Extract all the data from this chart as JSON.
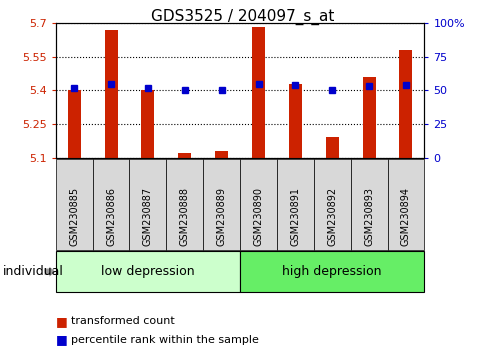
{
  "title": "GDS3525 / 204097_s_at",
  "samples": [
    "GSM230885",
    "GSM230886",
    "GSM230887",
    "GSM230888",
    "GSM230889",
    "GSM230890",
    "GSM230891",
    "GSM230892",
    "GSM230893",
    "GSM230894"
  ],
  "red_values": [
    5.4,
    5.67,
    5.4,
    5.12,
    5.13,
    5.68,
    5.43,
    5.19,
    5.46,
    5.58
  ],
  "blue_values": [
    52,
    55,
    52,
    50,
    50,
    55,
    54,
    50,
    53,
    54
  ],
  "ymin": 5.1,
  "ymax": 5.7,
  "yright_min": 0,
  "yright_max": 100,
  "yticks_left": [
    5.1,
    5.25,
    5.4,
    5.55,
    5.7
  ],
  "ytick_labels_left": [
    "5.1",
    "5.25",
    "5.4",
    "5.55",
    "5.7"
  ],
  "yticks_right": [
    0,
    25,
    50,
    75,
    100
  ],
  "ytick_labels_right": [
    "0",
    "25",
    "50",
    "75",
    "100%"
  ],
  "group1_label": "low depression",
  "group2_label": "high depression",
  "group1_color": "#ccffcc",
  "group2_color": "#66ee66",
  "bar_color": "#cc2200",
  "dot_color": "#0000cc",
  "baseline": 5.1,
  "individual_label": "individual",
  "legend_red": "transformed count",
  "legend_blue": "percentile rank within the sample",
  "bar_width": 0.35,
  "sample_box_color": "#d8d8d8",
  "title_fontsize": 11
}
